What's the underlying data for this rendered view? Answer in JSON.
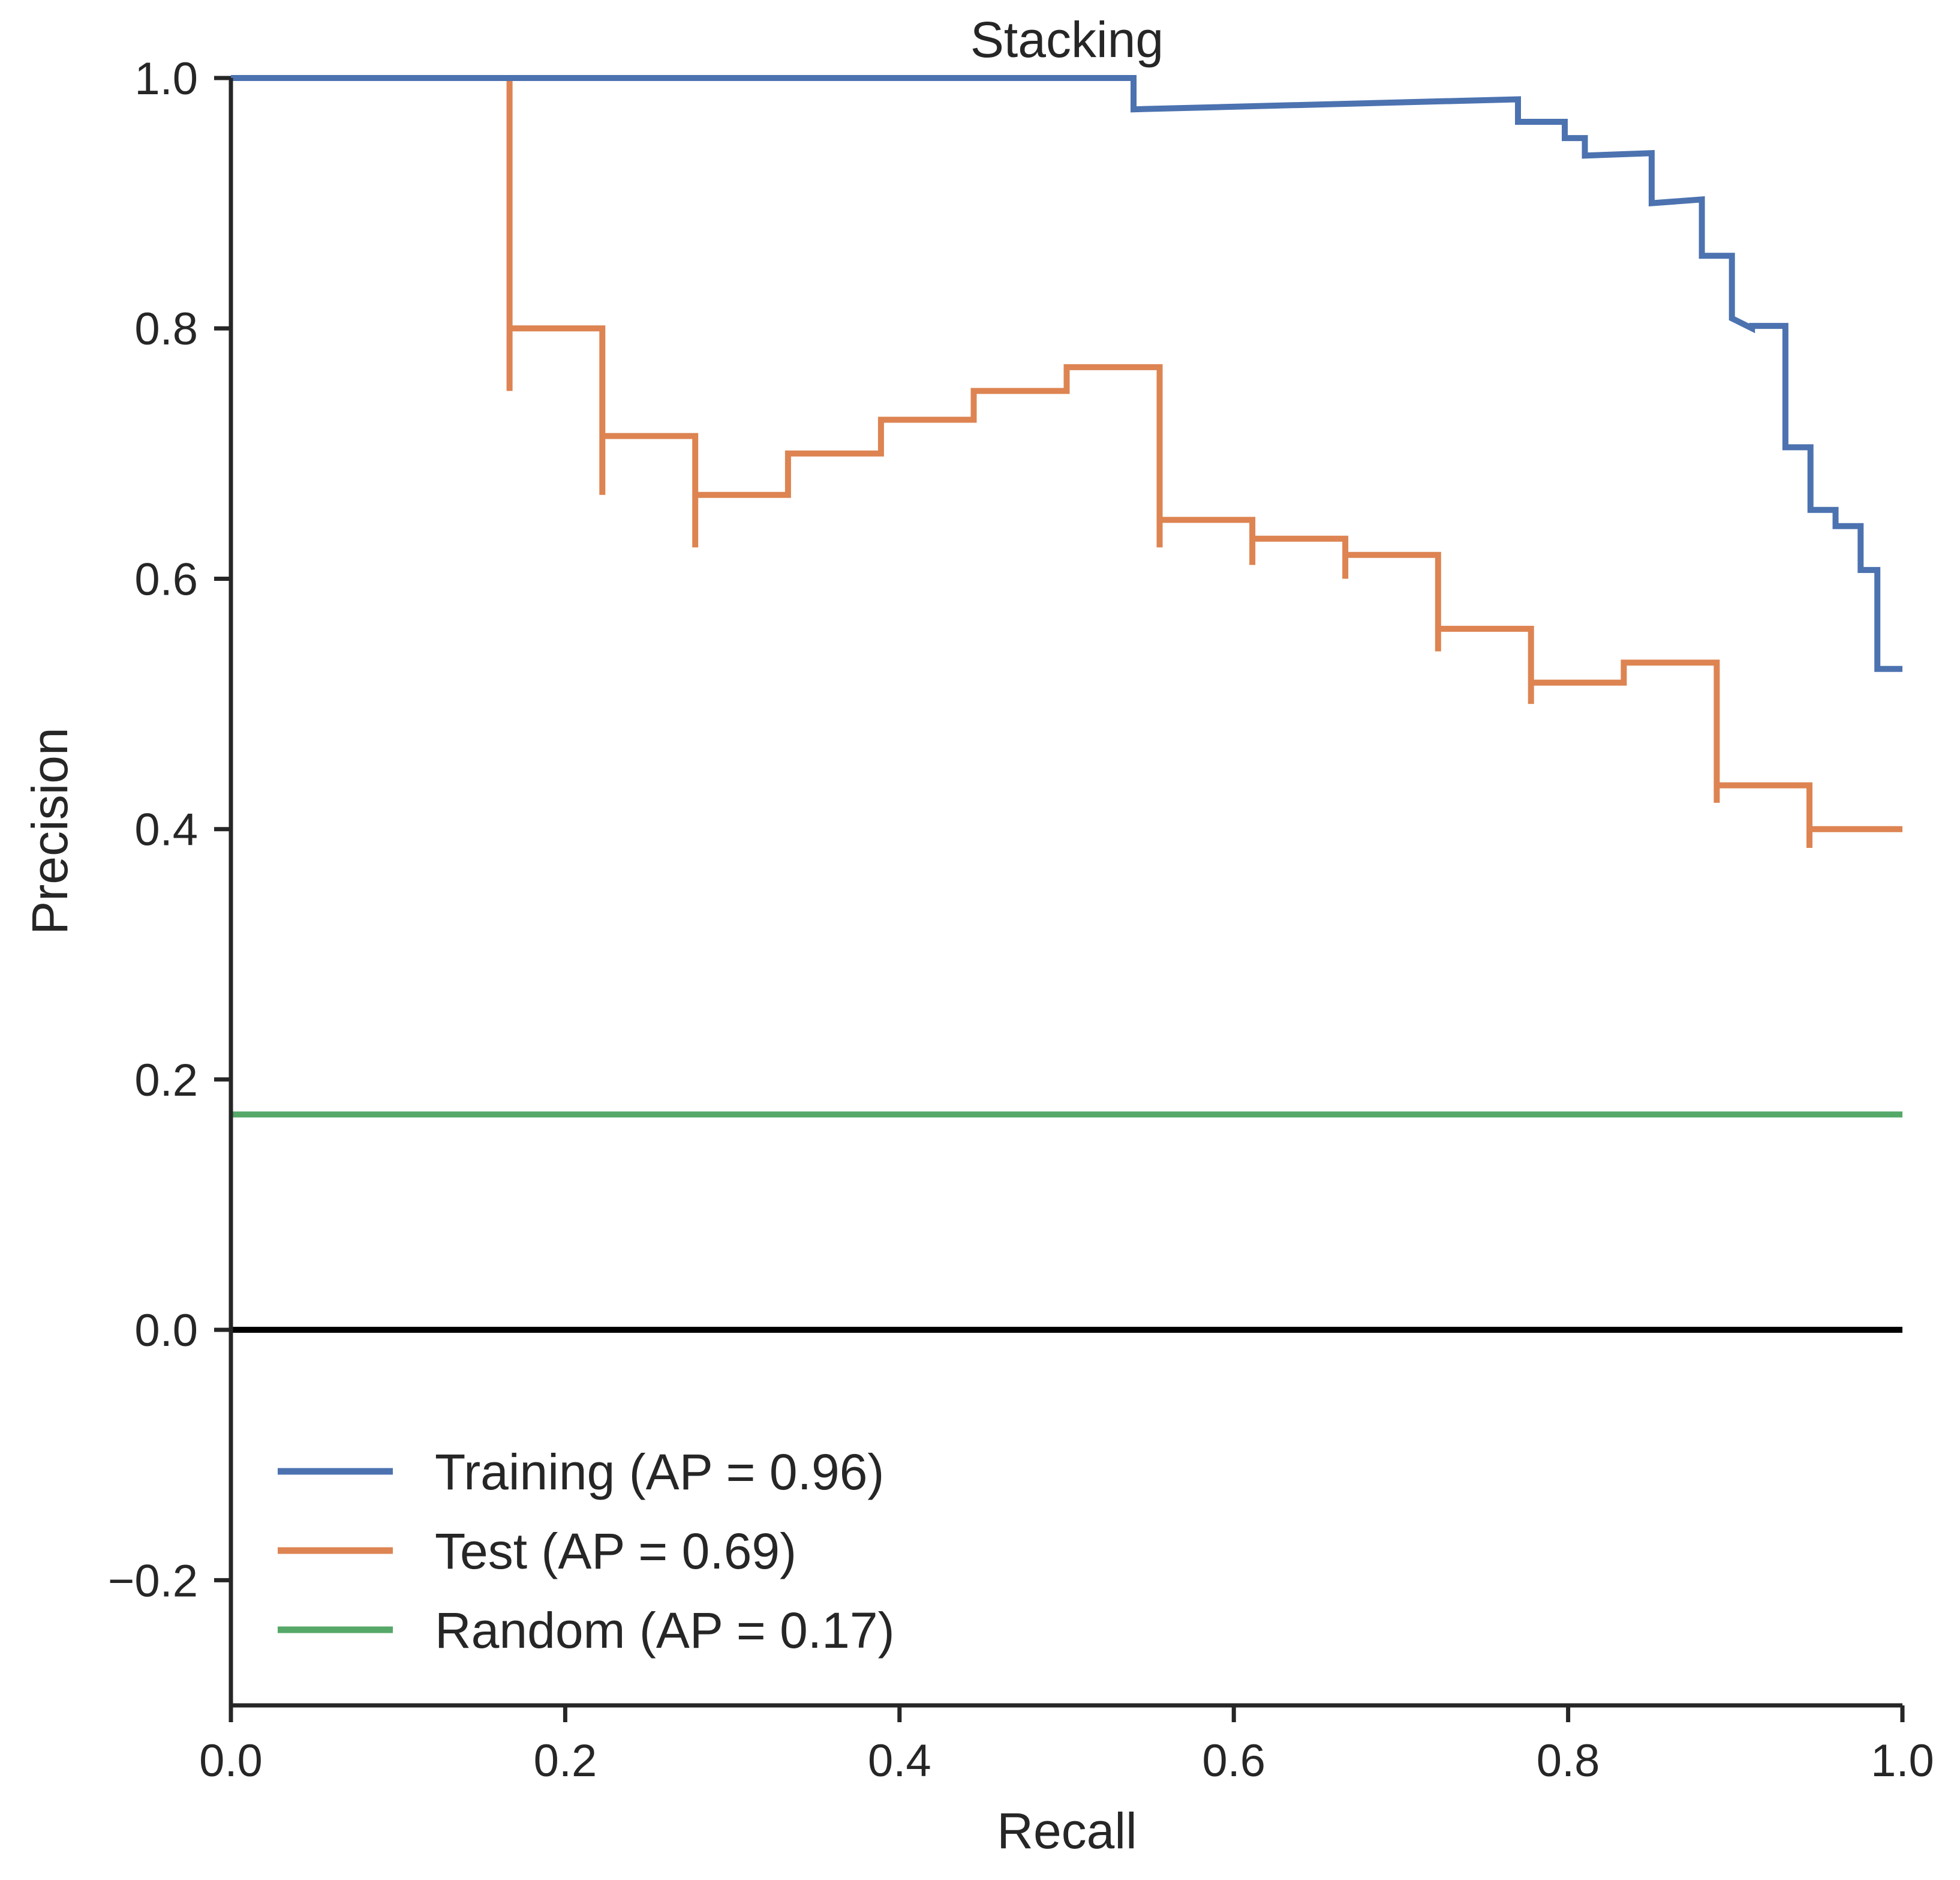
{
  "chart_data": {
    "type": "line",
    "title": "Stacking",
    "xlabel": "Recall",
    "ylabel": "Precision",
    "xlim": [
      0.0,
      1.0
    ],
    "ylim": [
      -0.3,
      1.0
    ],
    "xticks": [
      0.0,
      0.2,
      0.4,
      0.6,
      0.8,
      1.0
    ],
    "xtick_labels": [
      "0.0",
      "0.2",
      "0.4",
      "0.6",
      "0.8",
      "1.0"
    ],
    "yticks": [
      -0.2,
      0.0,
      0.2,
      0.4,
      0.6,
      0.8,
      1.0
    ],
    "ytick_labels": [
      "−0.2",
      "0.0",
      "0.2",
      "0.4",
      "0.6",
      "0.8",
      "1.0"
    ],
    "grid": false,
    "legend_position": "lower-left",
    "series": [
      {
        "name": "Training (AP = 0.96)",
        "color": "#4c72b0",
        "step": "post",
        "x": [
          0.0,
          0.54,
          0.54,
          0.77,
          0.77,
          0.798,
          0.798,
          0.81,
          0.81,
          0.85,
          0.85,
          0.88,
          0.88,
          0.898,
          0.898,
          0.91,
          0.91,
          0.93,
          0.93,
          0.945,
          0.945,
          0.96,
          0.96,
          0.975,
          0.975,
          0.985,
          0.985,
          1.0
        ],
        "y": [
          1.0,
          1.0,
          0.975,
          0.983,
          0.965,
          0.965,
          0.952,
          0.952,
          0.938,
          0.94,
          0.9,
          0.903,
          0.858,
          0.858,
          0.808,
          0.8,
          0.802,
          0.802,
          0.705,
          0.705,
          0.655,
          0.655,
          0.642,
          0.642,
          0.607,
          0.607,
          0.528,
          0.528
        ]
      },
      {
        "name": "Test (AP = 0.69)",
        "color": "#dd8452",
        "step": "post",
        "x": [
          0.0,
          0.1667,
          0.1667,
          0.1667,
          0.2222,
          0.2222,
          0.2222,
          0.2778,
          0.2778,
          0.2778,
          0.3333,
          0.3333,
          0.3889,
          0.3889,
          0.4444,
          0.4444,
          0.5,
          0.5,
          0.5556,
          0.5556,
          0.5556,
          0.6111,
          0.6111,
          0.6111,
          0.6667,
          0.6667,
          0.6667,
          0.7222,
          0.7222,
          0.7222,
          0.7778,
          0.7778,
          0.7778,
          0.8333,
          0.8333,
          0.8889,
          0.8889,
          0.8889,
          0.9444,
          0.9444,
          0.9444,
          1.0
        ],
        "y": [
          1.0,
          1.0,
          0.75,
          0.8,
          0.8,
          0.667,
          0.714,
          0.714,
          0.625,
          0.667,
          0.667,
          0.7,
          0.7,
          0.727,
          0.727,
          0.75,
          0.75,
          0.769,
          0.769,
          0.625,
          0.647,
          0.647,
          0.611,
          0.632,
          0.632,
          0.6,
          0.619,
          0.619,
          0.542,
          0.56,
          0.56,
          0.5,
          0.517,
          0.517,
          0.533,
          0.533,
          0.421,
          0.435,
          0.435,
          0.385,
          0.4,
          0.4
        ]
      },
      {
        "name": "Random (AP = 0.17)",
        "color": "#55a868",
        "x": [
          0.0,
          1.0
        ],
        "y": [
          0.172,
          0.172
        ]
      }
    ],
    "annotations": [
      {
        "type": "hline",
        "y": 0.0,
        "color": "#000000"
      },
      {
        "type": "vline",
        "x": 0.0,
        "color": "#55a868",
        "y_range": [
          0.172,
          1.0
        ]
      }
    ]
  }
}
